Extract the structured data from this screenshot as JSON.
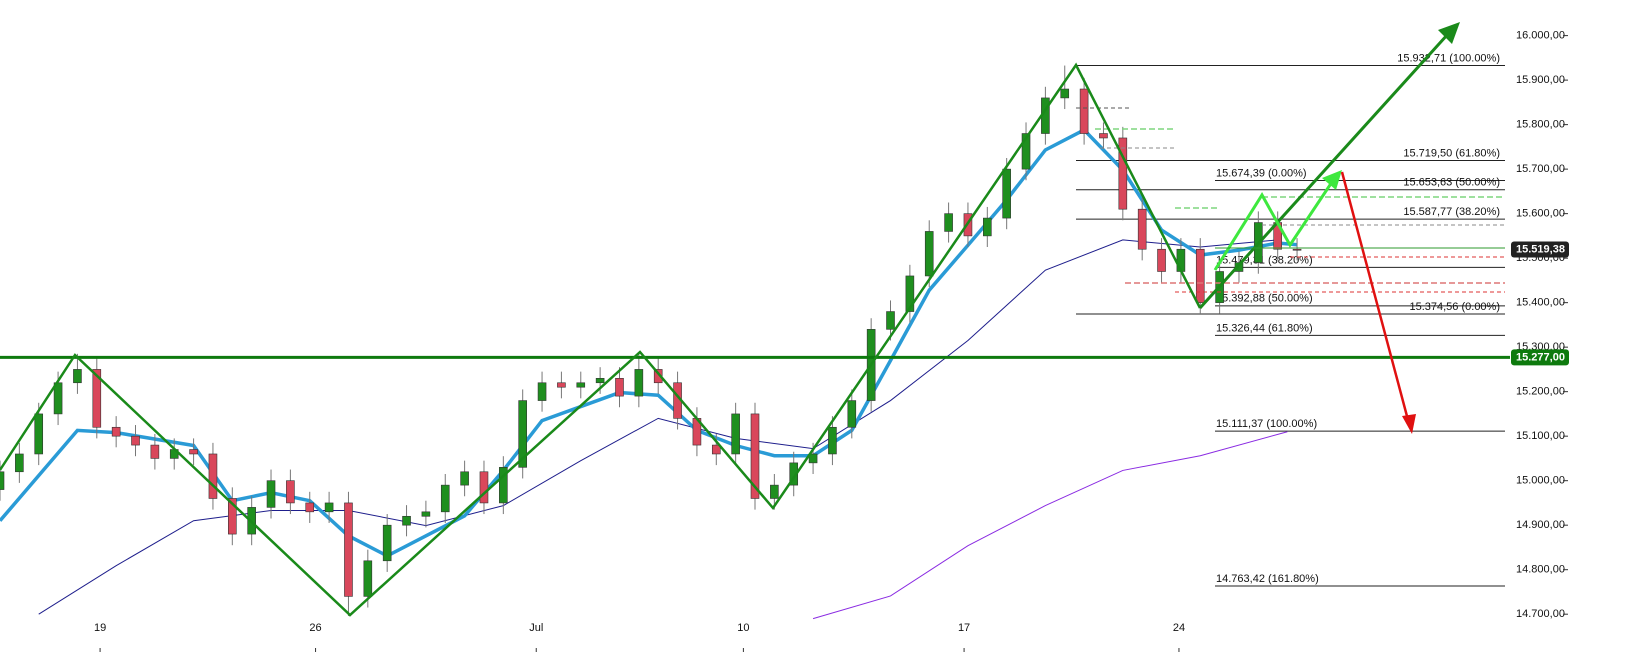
{
  "chart_data": {
    "type": "candlestick",
    "x": [
      0,
      1,
      2,
      3,
      4,
      5,
      6,
      7,
      8,
      9,
      10,
      11,
      12,
      13,
      14,
      15,
      16,
      17,
      18,
      19,
      20,
      21,
      22,
      23,
      24,
      25,
      26,
      27,
      28,
      29,
      30,
      31,
      32,
      33,
      34,
      35,
      36,
      37,
      38,
      39,
      40,
      41,
      42,
      43,
      44,
      45,
      46,
      47,
      48,
      49,
      50,
      51,
      52,
      53,
      54,
      55,
      56,
      57,
      58,
      59,
      60,
      61,
      62,
      63,
      64,
      65,
      66,
      67
    ],
    "open": [
      14980,
      15020,
      15060,
      15150,
      15220,
      15250,
      15120,
      15100,
      15080,
      15050,
      15070,
      15060,
      14960,
      14880,
      14940,
      15000,
      14950,
      14930,
      14950,
      14740,
      14820,
      14900,
      14920,
      14930,
      14990,
      15020,
      14950,
      15030,
      15180,
      15220,
      15210,
      15220,
      15230,
      15190,
      15250,
      15220,
      15140,
      15080,
      15060,
      15150,
      14960,
      14990,
      15040,
      15060,
      15120,
      15180,
      15340,
      15380,
      15460,
      15560,
      15600,
      15550,
      15590,
      15700,
      15780,
      15860,
      15880,
      15780,
      15770,
      15610,
      15520,
      15470,
      15520,
      15400,
      15470,
      15490,
      15580,
      15520
    ],
    "high": [
      15045,
      15085,
      15175,
      15245,
      15285,
      15275,
      15145,
      15125,
      15105,
      15095,
      15095,
      15085,
      14985,
      14965,
      15025,
      15025,
      14975,
      14975,
      14975,
      14845,
      14925,
      14945,
      14955,
      15015,
      15045,
      15045,
      15055,
      15205,
      15245,
      15245,
      15245,
      15255,
      15255,
      15285,
      15275,
      15245,
      15165,
      15105,
      15175,
      15175,
      15015,
      15065,
      15085,
      15145,
      15205,
      15365,
      15405,
      15485,
      15585,
      15625,
      15625,
      15615,
      15725,
      15805,
      15885,
      15932.71,
      15905,
      15805,
      15795,
      15635,
      15545,
      15545,
      15545,
      15495,
      15515,
      15605,
      15605,
      15545
    ],
    "low": [
      14955,
      14995,
      15035,
      15125,
      15195,
      15095,
      15075,
      15055,
      15025,
      15025,
      15035,
      14935,
      14855,
      14855,
      14915,
      14925,
      14905,
      14905,
      14696,
      14715,
      14795,
      14875,
      14895,
      14905,
      14965,
      14925,
      14925,
      15005,
      15155,
      15185,
      15185,
      15195,
      15165,
      15165,
      15195,
      15115,
      15055,
      15035,
      15035,
      14935,
      14935,
      14965,
      15015,
      15035,
      15095,
      15155,
      15315,
      15355,
      15435,
      15535,
      15525,
      15525,
      15565,
      15675,
      15755,
      15835,
      15755,
      15745,
      15585,
      15495,
      15445,
      15445,
      15374.56,
      15375,
      15445,
      15465,
      15495,
      15495
    ],
    "close": [
      15020,
      15060,
      15150,
      15220,
      15250,
      15120,
      15100,
      15080,
      15050,
      15070,
      15060,
      14960,
      14880,
      14940,
      15000,
      14950,
      14930,
      14950,
      14740,
      14820,
      14900,
      14920,
      14930,
      14990,
      15020,
      14950,
      15030,
      15180,
      15220,
      15210,
      15220,
      15230,
      15190,
      15250,
      15220,
      15140,
      15080,
      15060,
      15150,
      14960,
      14990,
      15040,
      15060,
      15120,
      15180,
      15340,
      15380,
      15460,
      15560,
      15600,
      15550,
      15590,
      15700,
      15780,
      15860,
      15880,
      15780,
      15770,
      15610,
      15520,
      15470,
      15520,
      15400,
      15470,
      15490,
      15580,
      15520,
      15519.38
    ],
    "up_color": "#1f8f1f",
    "down_color": "#d9475b",
    "xlim": [
      0,
      78
    ],
    "ylim": [
      14660,
      16080
    ],
    "xticks": [
      {
        "value": 5.17,
        "label": "19"
      },
      {
        "value": 16.3,
        "label": "26"
      },
      {
        "value": 27.7,
        "label": "Jul"
      },
      {
        "value": 38.4,
        "label": "10"
      },
      {
        "value": 49.8,
        "label": "17"
      },
      {
        "value": 60.9,
        "label": "24"
      }
    ],
    "yticks": [
      {
        "value": 14700,
        "label": "14.700,00"
      },
      {
        "value": 14800,
        "label": "14.800,00"
      },
      {
        "value": 14900,
        "label": "14.900,00"
      },
      {
        "value": 15000,
        "label": "15.000,00"
      },
      {
        "value": 15100,
        "label": "15.100,00"
      },
      {
        "value": 15200,
        "label": "15.200,00"
      },
      {
        "value": 15300,
        "label": "15.300,00"
      },
      {
        "value": 15400,
        "label": "15.400,00"
      },
      {
        "value": 15500,
        "label": "15.500,00"
      },
      {
        "value": 15600,
        "label": "15.600,00"
      },
      {
        "value": 15700,
        "label": "15.700,00"
      },
      {
        "value": 15800,
        "label": "15.800,00"
      },
      {
        "value": 15900,
        "label": "15.900,00"
      },
      {
        "value": 16000,
        "label": "16.000,00"
      }
    ],
    "indicators": [
      {
        "color": "#8a2be2",
        "width": 1,
        "x": [
          42,
          46,
          50,
          54,
          58,
          62,
          66.5
        ],
        "values": [
          14690,
          14741,
          14854,
          14944,
          15023,
          15056,
          15110
        ]
      },
      {
        "color": "#1e1e8c",
        "width": 1,
        "x": [
          2,
          6,
          10,
          14,
          18,
          22,
          26,
          30,
          34,
          38,
          42,
          46,
          50,
          54,
          58,
          62,
          66
        ],
        "values": [
          14700,
          14809,
          14910,
          14933,
          14933,
          14899,
          14944,
          15045,
          15140,
          15095,
          15072,
          15180,
          15315,
          15473,
          15541,
          15525,
          15541
        ]
      },
      {
        "color": "#2a9bd6",
        "width": 3.5,
        "x": [
          0,
          4,
          6,
          10,
          12,
          14,
          16,
          18,
          20,
          24,
          26,
          28,
          32,
          34,
          36,
          38,
          40,
          42,
          44,
          46,
          48,
          50,
          52,
          54,
          56,
          58,
          60,
          62,
          64,
          66,
          67
        ],
        "values": [
          14910,
          15113,
          15108,
          15079,
          14955,
          14973,
          14955,
          14876,
          14831,
          14921,
          15023,
          15135,
          15198,
          15192,
          15113,
          15079,
          15056,
          15056,
          15113,
          15270,
          15428,
          15529,
          15631,
          15743,
          15788,
          15698,
          15563,
          15507,
          15518,
          15534,
          15530
        ]
      }
    ],
    "levels": [
      {
        "value": 15932.71,
        "label": "15.932,71 (100.00%)"
      },
      {
        "value": 15719.5,
        "label": "15.719,50 (61.80%)"
      },
      {
        "value": 15674.39,
        "label": "15.674,39 (0.00%)"
      },
      {
        "value": 15653.63,
        "label": "15.653,63 (50.00%)"
      },
      {
        "value": 15587.77,
        "label": "15.587,77 (38.20%)"
      },
      {
        "value": 15479.31,
        "label": "15.479,31 (38.20%)"
      },
      {
        "value": 15392.88,
        "label": "15.392,88 (50.00%)"
      },
      {
        "value": 15374.56,
        "label": "15.374,56 (0.00%)"
      },
      {
        "value": 15326.44,
        "label": "15.326,44 (61.80%)"
      },
      {
        "value": 15111.37,
        "label": "15.111,37 (100.00%)"
      },
      {
        "value": 14763.42,
        "label": "14.763,42 (161.80%)"
      }
    ],
    "price_labels": [
      {
        "value": 15519.38,
        "label": "15.519,38",
        "color": "#222222",
        "line": false
      },
      {
        "value": 15277.0,
        "label": "15.277,00",
        "color": "#0e7a0e",
        "line": true
      }
    ]
  }
}
